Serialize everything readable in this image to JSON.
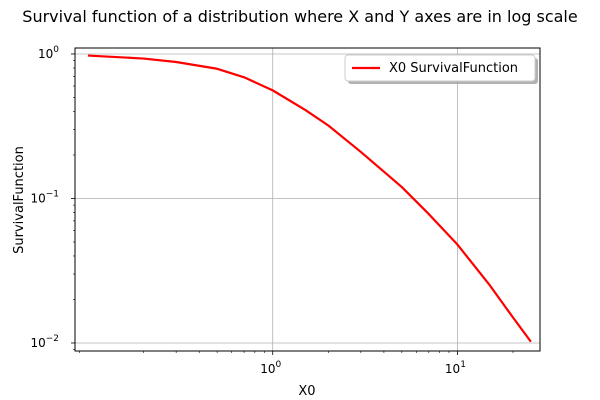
{
  "chart_data": {
    "type": "line",
    "title": "Survival function of a distribution where X and Y axes are in log scale",
    "xlabel": "X0",
    "ylabel": "SurvivalFunction",
    "xscale": "log",
    "yscale": "log",
    "xlim": [
      0.085,
      28
    ],
    "ylim": [
      0.0088,
      1.1
    ],
    "grid": true,
    "legend_position": "top-right",
    "x_ticks": [
      {
        "value": 1,
        "base": "10",
        "exp": "0"
      },
      {
        "value": 10,
        "base": "10",
        "exp": "1"
      }
    ],
    "y_ticks": [
      {
        "value": 1,
        "base": "10",
        "exp": "0"
      },
      {
        "value": 0.1,
        "base": "10",
        "exp": "−1"
      },
      {
        "value": 0.01,
        "base": "10",
        "exp": "−2"
      }
    ],
    "series": [
      {
        "name": "X0 SurvivalFunction",
        "color": "#ff0000",
        "x": [
          0.1,
          0.2,
          0.3,
          0.5,
          0.7,
          1.0,
          1.5,
          2.0,
          3.0,
          5.0,
          7.0,
          10.0,
          15.0,
          20.0,
          25.0
        ],
        "y": [
          0.975,
          0.93,
          0.88,
          0.79,
          0.69,
          0.56,
          0.41,
          0.32,
          0.21,
          0.12,
          0.078,
          0.048,
          0.025,
          0.015,
          0.0102
        ]
      }
    ]
  }
}
